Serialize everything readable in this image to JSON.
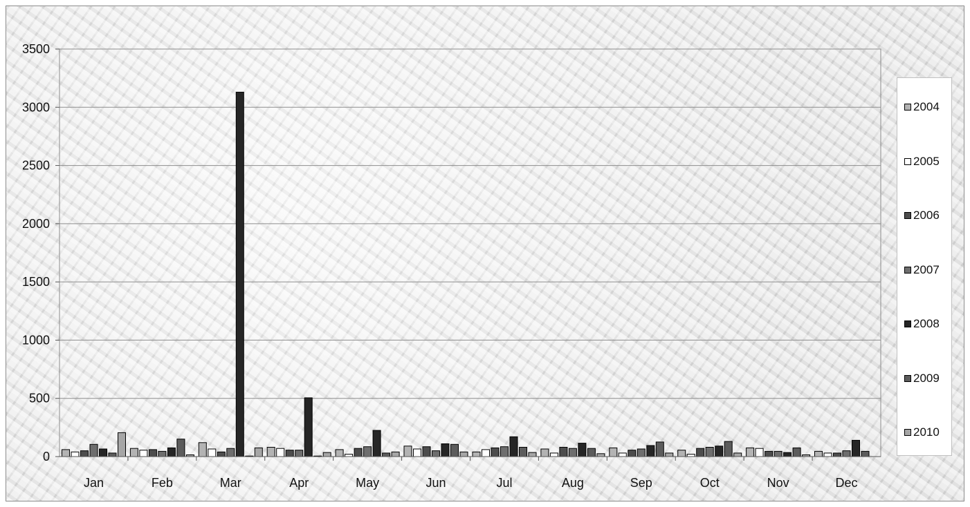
{
  "chart_data": {
    "type": "bar",
    "categories": [
      "Jan",
      "Feb",
      "Mar",
      "Apr",
      "May",
      "Jun",
      "Jul",
      "Aug",
      "Sep",
      "Oct",
      "Nov",
      "Dec"
    ],
    "ylim": [
      0,
      3500
    ],
    "yticks": [
      "0",
      "500",
      "1000",
      "1500",
      "2000",
      "2500",
      "3000",
      "3500"
    ],
    "grid": true,
    "legend_position": "right",
    "series": [
      {
        "name": "2004",
        "color": "#b3b3b3",
        "values": [
          60,
          70,
          120,
          80,
          60,
          90,
          40,
          65,
          75,
          55,
          75,
          45
        ]
      },
      {
        "name": "2005",
        "color": "#ffffff",
        "values": [
          40,
          55,
          65,
          70,
          20,
          65,
          60,
          30,
          30,
          20,
          70,
          30
        ]
      },
      {
        "name": "2006",
        "color": "#4d4d4d",
        "values": [
          50,
          60,
          40,
          55,
          70,
          85,
          75,
          80,
          55,
          70,
          45,
          30
        ]
      },
      {
        "name": "2007",
        "color": "#6e6e6e",
        "values": [
          105,
          45,
          70,
          55,
          85,
          50,
          85,
          70,
          65,
          80,
          45,
          50
        ]
      },
      {
        "name": "2008",
        "color": "#262626",
        "values": [
          65,
          75,
          3130,
          505,
          225,
          110,
          170,
          115,
          95,
          90,
          35,
          140
        ]
      },
      {
        "name": "2009",
        "color": "#5c5c5c",
        "values": [
          30,
          150,
          5,
          5,
          30,
          105,
          80,
          70,
          125,
          130,
          75,
          45
        ]
      },
      {
        "name": "2010",
        "color": "#a6a6a6",
        "values": [
          205,
          15,
          75,
          35,
          40,
          40,
          35,
          25,
          30,
          30,
          15,
          null
        ]
      }
    ]
  }
}
